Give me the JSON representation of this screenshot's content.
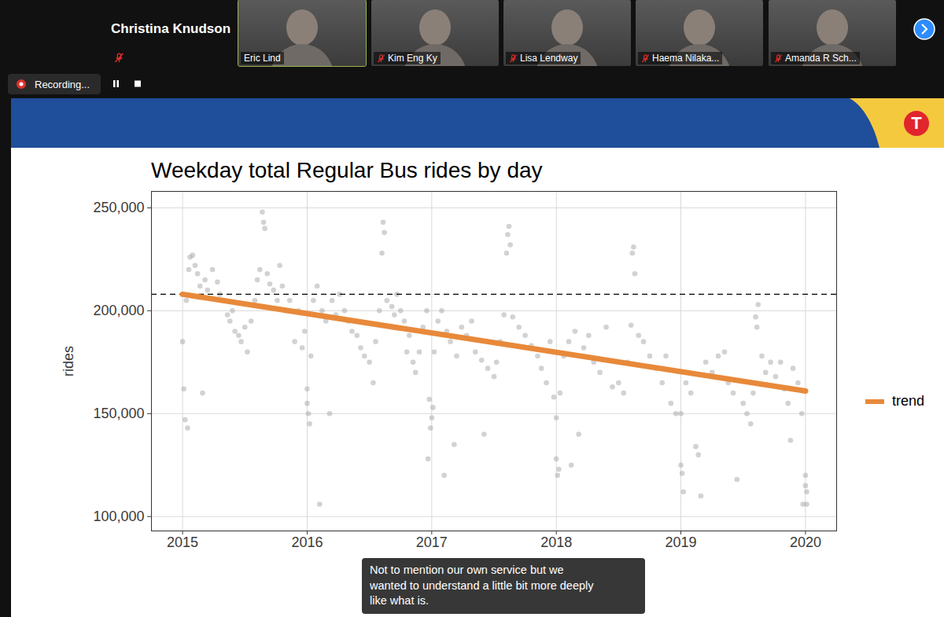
{
  "meeting": {
    "host_label": "Christina Knudson",
    "participants": [
      "Eric Lind",
      "Kim Eng Ky",
      "Lisa Lendway",
      "Haema Nilaka...",
      "Amanda R Sch..."
    ],
    "recording": "Recording...",
    "caption": [
      "Not to mention our own service but we",
      "wanted to understand a little bit more deeply",
      "like what is."
    ],
    "logo": "T"
  },
  "chart_data": {
    "type": "scatter",
    "title": "Weekday total Regular Bus rides by day",
    "y_label": "rides",
    "xlim": [
      2014.75,
      2020.25
    ],
    "xticks": [
      2015,
      2016,
      2017,
      2018,
      2019,
      2020
    ],
    "ylim": [
      93000,
      258000
    ],
    "yticks": [
      {
        "value": 100000,
        "label": "100,000"
      },
      {
        "value": 150000,
        "label": "150,000"
      },
      {
        "value": 200000,
        "label": "200,000"
      },
      {
        "value": 250000,
        "label": "250,000"
      }
    ],
    "grid": true,
    "legend": "right",
    "reference_line": {
      "value": 208000,
      "color": "#000000",
      "line_style": "dashed"
    },
    "series": [
      {
        "type": "scatter",
        "marker": "circle",
        "color": "#a6a6a6",
        "x": [
          2015.0,
          2015.01,
          2015.02,
          2015.04,
          2015.03,
          2015.05,
          2015.06,
          2015.08,
          2015.1,
          2015.12,
          2015.14,
          2015.16,
          2015.18,
          2015.2,
          2015.24,
          2015.28,
          2015.3,
          2015.33,
          2015.36,
          2015.38,
          2015.4,
          2015.42,
          2015.45,
          2015.47,
          2015.5,
          2015.52,
          2015.55,
          2015.58,
          2015.6,
          2015.62,
          2015.64,
          2015.65,
          2015.66,
          2015.68,
          2015.7,
          2015.73,
          2015.76,
          2015.78,
          2015.8,
          2015.83,
          2015.86,
          2015.9,
          2015.93,
          2015.96,
          2015.98,
          2016.0,
          2016.0,
          2016.01,
          2016.02,
          2016.03,
          2016.05,
          2016.08,
          2016.1,
          2016.12,
          2016.15,
          2016.18,
          2016.2,
          2016.23,
          2016.26,
          2016.3,
          2016.33,
          2016.36,
          2016.4,
          2016.43,
          2016.46,
          2016.5,
          2016.53,
          2016.55,
          2016.58,
          2016.6,
          2016.61,
          2016.62,
          2016.64,
          2016.68,
          2016.7,
          2016.72,
          2016.75,
          2016.78,
          2016.8,
          2016.82,
          2016.85,
          2016.87,
          2016.9,
          2016.93,
          2016.96,
          2016.97,
          2016.98,
          2016.99,
          2017.0,
          2017.01,
          2017.02,
          2017.05,
          2017.08,
          2017.1,
          2017.12,
          2017.15,
          2017.18,
          2017.2,
          2017.24,
          2017.28,
          2017.32,
          2017.35,
          2017.4,
          2017.42,
          2017.45,
          2017.5,
          2017.52,
          2017.55,
          2017.58,
          2017.6,
          2017.61,
          2017.62,
          2017.63,
          2017.65,
          2017.7,
          2017.75,
          2017.8,
          2017.85,
          2017.88,
          2017.92,
          2017.95,
          2017.98,
          2018.0,
          2018.0,
          2018.01,
          2018.02,
          2018.03,
          2018.06,
          2018.1,
          2018.12,
          2018.15,
          2018.18,
          2018.22,
          2018.26,
          2018.3,
          2018.35,
          2018.4,
          2018.45,
          2018.5,
          2018.54,
          2018.57,
          2018.6,
          2018.61,
          2018.62,
          2018.63,
          2018.66,
          2018.7,
          2018.75,
          2018.8,
          2018.85,
          2018.88,
          2018.92,
          2018.96,
          2019.0,
          2019.0,
          2019.01,
          2019.02,
          2019.04,
          2019.08,
          2019.12,
          2019.14,
          2019.16,
          2019.2,
          2019.25,
          2019.3,
          2019.35,
          2019.38,
          2019.42,
          2019.45,
          2019.5,
          2019.53,
          2019.56,
          2019.58,
          2019.6,
          2019.61,
          2019.62,
          2019.65,
          2019.68,
          2019.72,
          2019.76,
          2019.8,
          2019.83,
          2019.86,
          2019.88,
          2019.9,
          2019.94,
          2019.97,
          2019.98,
          2020.0,
          2020.0,
          2020.01,
          2020.01
        ],
        "values": [
          185000,
          162000,
          147000,
          143000,
          205000,
          220000,
          226000,
          227000,
          222000,
          218000,
          212000,
          160000,
          215000,
          210000,
          220000,
          214000,
          208000,
          205000,
          198000,
          195000,
          200000,
          190000,
          188000,
          185000,
          192000,
          180000,
          195000,
          205000,
          215000,
          220000,
          248000,
          243000,
          240000,
          218000,
          213000,
          210000,
          205000,
          222000,
          212000,
          200000,
          205000,
          185000,
          200000,
          182000,
          190000,
          162000,
          155000,
          150000,
          145000,
          178000,
          205000,
          212000,
          106000,
          200000,
          195000,
          150000,
          205000,
          198000,
          208000,
          200000,
          195000,
          190000,
          188000,
          182000,
          178000,
          175000,
          165000,
          185000,
          200000,
          228000,
          243000,
          238000,
          205000,
          202000,
          198000,
          208000,
          200000,
          195000,
          180000,
          188000,
          175000,
          170000,
          180000,
          192000,
          200000,
          128000,
          157000,
          143000,
          148000,
          153000,
          180000,
          195000,
          200000,
          120000,
          190000,
          185000,
          135000,
          178000,
          192000,
          188000,
          195000,
          180000,
          176000,
          140000,
          172000,
          168000,
          175000,
          185000,
          198000,
          228000,
          237000,
          241000,
          232000,
          197000,
          192000,
          188000,
          183000,
          178000,
          172000,
          165000,
          185000,
          158000,
          148000,
          128000,
          120000,
          123000,
          160000,
          178000,
          185000,
          125000,
          190000,
          140000,
          182000,
          188000,
          175000,
          170000,
          192000,
          163000,
          165000,
          160000,
          175000,
          193000,
          228000,
          231000,
          218000,
          188000,
          185000,
          178000,
          172000,
          165000,
          178000,
          155000,
          150000,
          150000,
          125000,
          121000,
          112000,
          165000,
          160000,
          134000,
          130000,
          110000,
          175000,
          170000,
          178000,
          180000,
          165000,
          160000,
          118000,
          155000,
          150000,
          145000,
          160000,
          197000,
          192000,
          203000,
          178000,
          170000,
          175000,
          168000,
          175000,
          162000,
          155000,
          137000,
          172000,
          165000,
          150000,
          106000,
          120000,
          115000,
          112000,
          106000
        ]
      },
      {
        "name": "trend",
        "type": "line",
        "color": "#e8893a",
        "x": [
          2015,
          2020
        ],
        "values": [
          208000,
          161000
        ]
      }
    ]
  }
}
